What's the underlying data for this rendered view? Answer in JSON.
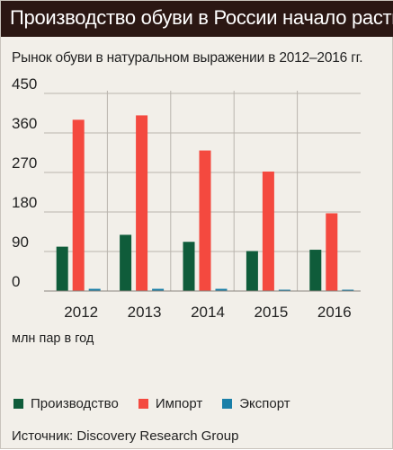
{
  "header": {
    "title": "Производство обуви в России начало расти",
    "subtitle": "Рынок обуви в натуральном выражении в 2012–2016 гг."
  },
  "unit_label": "млн пар в год",
  "source": "Источник: Discovery Research Group",
  "colors": {
    "title_bg": "#2b1713",
    "background": "#f2efe9",
    "production": "#0f5c3a",
    "import": "#f4493f",
    "export": "#1a7fa8"
  },
  "chart_data": {
    "type": "bar",
    "categories": [
      "2012",
      "2013",
      "2014",
      "2015",
      "2016"
    ],
    "series": [
      {
        "name": "Производство",
        "values": [
          101,
          128,
          112,
          91,
          94
        ]
      },
      {
        "name": "Импорт",
        "values": [
          390,
          400,
          320,
          272,
          177
        ]
      },
      {
        "name": "Экспорт",
        "values": [
          5,
          5,
          5,
          3,
          3
        ]
      }
    ],
    "ylim": [
      0,
      450
    ],
    "yticks": [
      "0",
      "90",
      "180",
      "270",
      "360",
      "450"
    ],
    "grid": true,
    "legend": "bottom"
  }
}
